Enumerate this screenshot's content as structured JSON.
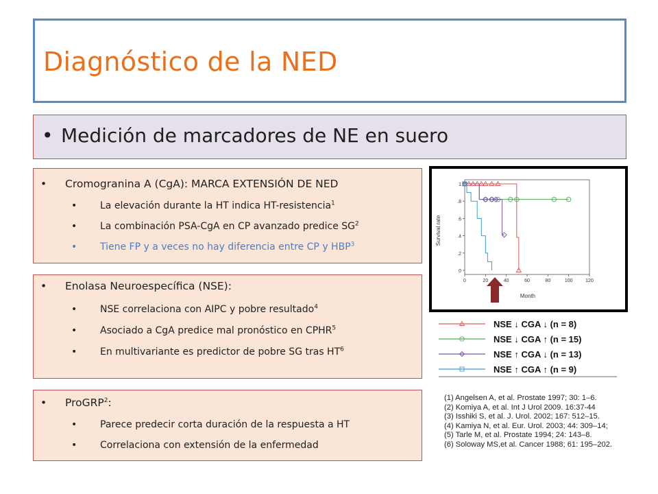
{
  "title": "Diagnóstico de la NED",
  "subtitle": "Medición de marcadores de NE en suero",
  "panel1": {
    "main": "Cromogranina A (CgA): MARCA EXTENSIÓN DE NED",
    "items": [
      {
        "text": "La elevación durante la HT indica HT-resistencia",
        "ref": "1"
      },
      {
        "text": "La combinación PSA-CgA en CP avanzado predice SG",
        "ref": "2"
      },
      {
        "text": "Tiene FP y a veces no hay diferencia entre CP y HBP",
        "ref": "3"
      }
    ]
  },
  "panel2": {
    "main": "Enolasa Neuroespecífica (NSE):",
    "items": [
      {
        "text": "NSE correlaciona con AIPC y pobre resultado",
        "ref": "4"
      },
      {
        "text": "Asociado a CgA predice mal pronóstico en CPHR",
        "ref": "5"
      },
      {
        "text": "En multivariante es predictor de pobre SG tras HT",
        "ref": "6"
      }
    ]
  },
  "panel3": {
    "main": "ProGRP",
    "main_ref": "2",
    "main_suffix": ":",
    "items": [
      {
        "text": "Parece predecir corta duración de la respuesta a HT"
      },
      {
        "text": "Correlaciona con extensión de la enfermedad"
      }
    ]
  },
  "chart_data": {
    "type": "line",
    "ylabel": "Survival rate",
    "xlabel": "Month",
    "x_ticks": [
      "0",
      "20",
      "40",
      "60",
      "80",
      "100",
      "120"
    ],
    "y_ticks": [
      "0",
      ".2",
      ".4",
      ".6",
      ".8",
      "1"
    ],
    "xlim": [
      0,
      120
    ],
    "ylim": [
      0,
      1
    ],
    "series": [
      {
        "name": "NSE ↓ CGA ↓ (n = 8)",
        "color": "#e05a5a",
        "marker": "triangle",
        "x": [
          0,
          4,
          8,
          12,
          16,
          20,
          26,
          32,
          50,
          50,
          52,
          52
        ],
        "y": [
          1,
          1,
          1,
          1,
          1,
          1,
          1,
          1,
          1,
          0.38,
          0.38,
          0
        ]
      },
      {
        "name": "NSE ↓ CGA ↑ (n = 15)",
        "color": "#4caf50",
        "marker": "circle",
        "x": [
          0,
          14,
          14,
          20,
          26,
          32,
          44,
          50,
          86,
          100
        ],
        "y": [
          1,
          1,
          0.82,
          0.82,
          0.82,
          0.82,
          0.82,
          0.82,
          0.82,
          0.82
        ]
      },
      {
        "name": "NSE ↑ CGA ↓ (n = 13)",
        "color": "#7a55a8",
        "marker": "diamond",
        "x": [
          0,
          14,
          14,
          20,
          26,
          30,
          36,
          36,
          38,
          38
        ],
        "y": [
          1,
          1,
          0.82,
          0.82,
          0.82,
          0.82,
          0.82,
          0.41,
          0.41,
          0.41
        ]
      },
      {
        "name": "NSE ↑ CGA ↑ (n = 9)",
        "color": "#3a9bd1",
        "marker": "square",
        "x": [
          0,
          2,
          2,
          6,
          6,
          12,
          12,
          16,
          16,
          20,
          20,
          22,
          22,
          26,
          26
        ],
        "y": [
          1,
          1,
          0.9,
          0.9,
          0.8,
          0.8,
          0.6,
          0.6,
          0.4,
          0.4,
          0.2,
          0.2,
          0.1,
          0.1,
          0
        ]
      }
    ]
  },
  "references": [
    "(1) Angelsen A, et al. Prostate 1997; 30: 1–6.",
    "(2) Komiya A, et al. Int J Urol 2009. 16:37-44",
    "(3) Isshiki S, et al. J. Urol. 2002; 167: 512–15.",
    "(4) Kamiya N, et al. Eur. Urol. 2003; 44: 309–14;",
    "(5) Tarle M, et al. Prostate 1994; 24: 143–8.",
    "(6) Soloway MS,et al. Cancer 1988; 61: 195–202."
  ],
  "colors": {
    "title": "#e8711e",
    "title_border": "#5b88c3",
    "panel_bg": "#fbe5d6",
    "panel_border": "#c0504d",
    "subtitle_bg": "#e6e0ec",
    "arrow": "#8b2a2a"
  }
}
